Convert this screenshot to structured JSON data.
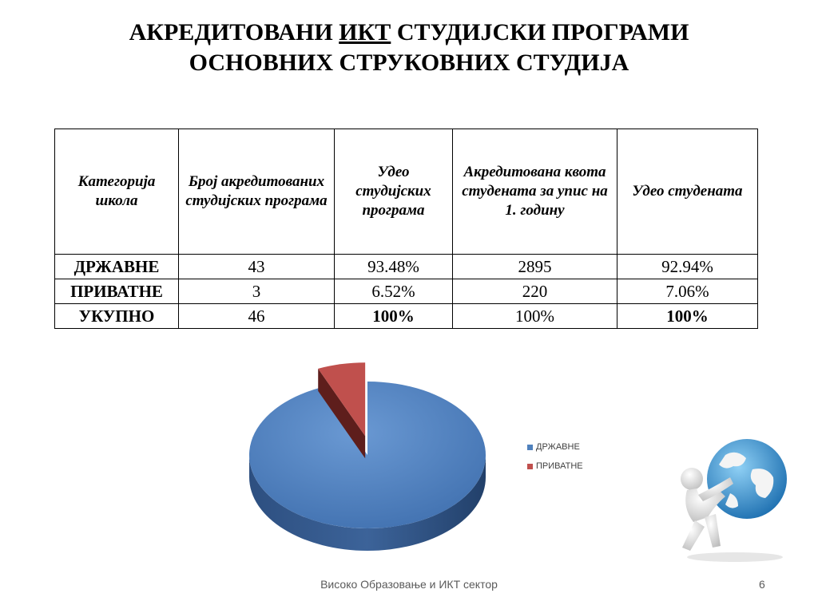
{
  "title": {
    "line1_before": "АКРЕДИТОВАНИ ",
    "line1_underlined": "ИКТ",
    "line1_after": " СТУДИЈСКИ ПРОГРАМИ",
    "line2": "ОСНОВНИХ СТРУКОВНИХ СТУДИЈА"
  },
  "table": {
    "headers": [
      "Категорија школа",
      "Број акредитованих студијских програма",
      "Удео студијских програма",
      "Акредитована квота студената за упис на 1. годину",
      "Удео студената"
    ],
    "rows": [
      [
        "ДРЖАВНЕ",
        "43",
        "93.48%",
        "2895",
        "92.94%"
      ],
      [
        "ПРИВАТНЕ",
        "3",
        "6.52%",
        "220",
        "7.06%"
      ],
      [
        "УКУПНО",
        "46",
        "100%",
        "100%",
        "100%"
      ]
    ]
  },
  "chart_data": {
    "type": "pie",
    "categories": [
      "ДРЖАВНЕ",
      "ПРИВАТНЕ"
    ],
    "values": [
      93.48,
      6.52
    ],
    "colors": [
      "#4f81bd",
      "#c0504d"
    ],
    "legend": "right",
    "style": "3d-exploded"
  },
  "footer": {
    "text": "Високо Образовање и ИКТ сектор",
    "page": "6"
  },
  "illustration": {
    "icon": "person-carrying-globe-icon"
  }
}
